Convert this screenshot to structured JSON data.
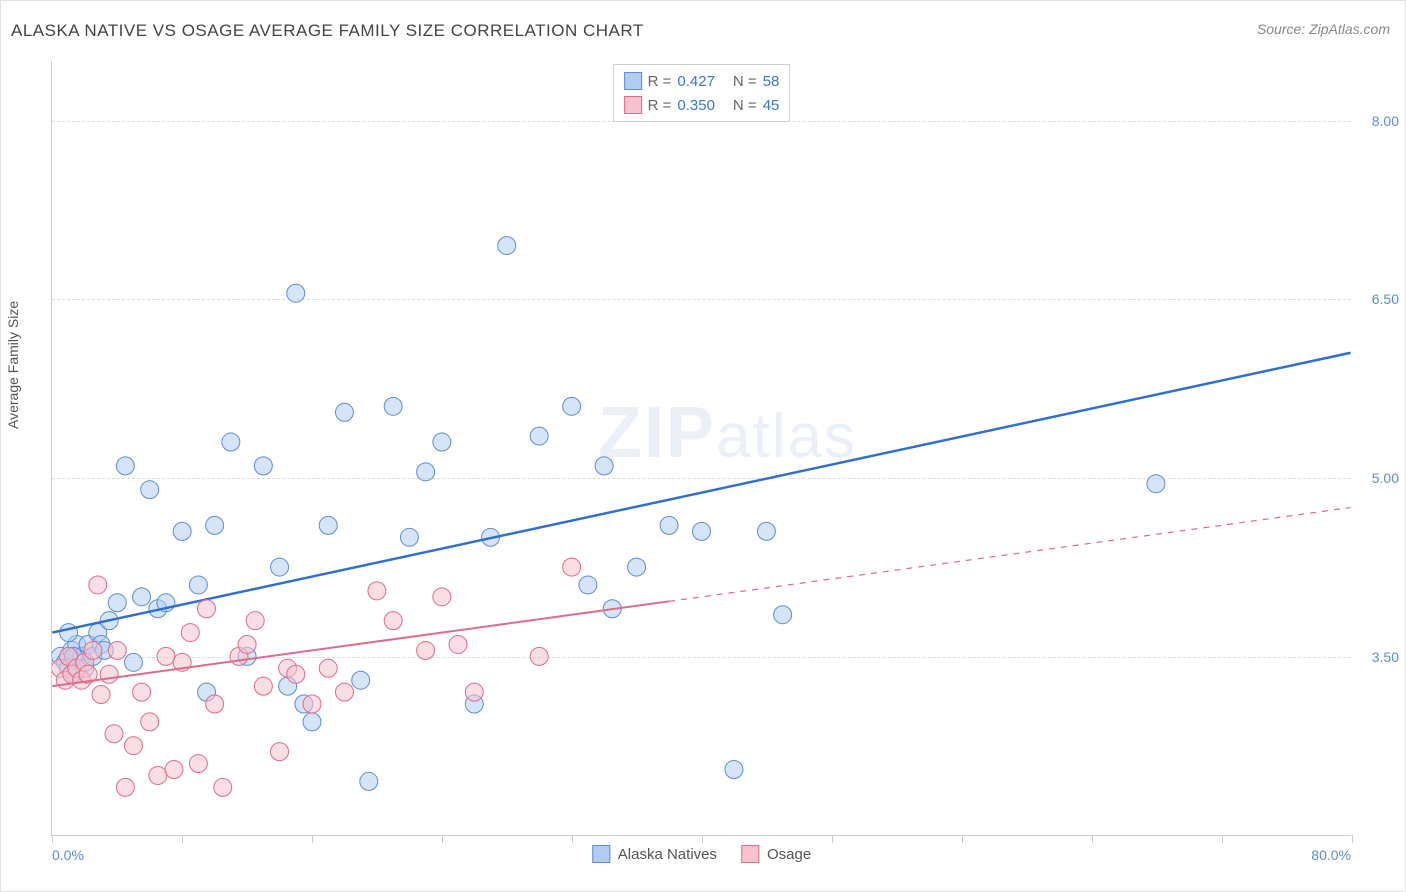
{
  "title": "ALASKA NATIVE VS OSAGE AVERAGE FAMILY SIZE CORRELATION CHART",
  "source": "Source: ZipAtlas.com",
  "ylabel": "Average Family Size",
  "watermark_a": "ZIP",
  "watermark_b": "atlas",
  "chart": {
    "type": "scatter",
    "xlim": [
      0,
      80
    ],
    "ylim": [
      2.0,
      8.5
    ],
    "xtick_positions": [
      0,
      8,
      16,
      24,
      32,
      40,
      48,
      56,
      64,
      72,
      80
    ],
    "xtick_labels": {
      "0": "0.0%",
      "80": "80.0%"
    },
    "ytick_positions": [
      3.5,
      5.0,
      6.5,
      8.0
    ],
    "ytick_labels": [
      "3.50",
      "5.00",
      "6.50",
      "8.00"
    ],
    "background_color": "#ffffff",
    "grid_color": "#dddddd",
    "axis_color": "#cccccc",
    "tick_label_color": "#5b8dd6",
    "marker_radius": 9,
    "marker_opacity": 0.55,
    "series": [
      {
        "name": "Alaska Natives",
        "fill": "#b3cdf0",
        "stroke": "#5b8dd6",
        "line_color": "#2e6fd0",
        "line_width": 2.5,
        "r_value": "0.427",
        "n_value": "58",
        "regression": {
          "x1": 0,
          "y1": 3.7,
          "x2": 80,
          "y2": 6.05
        },
        "regression_solid_until": 80,
        "points": [
          [
            0.5,
            3.5
          ],
          [
            0.8,
            3.45
          ],
          [
            1.0,
            3.4
          ],
          [
            1.2,
            3.55
          ],
          [
            1.4,
            3.35
          ],
          [
            1.5,
            3.6
          ],
          [
            1.8,
            3.5
          ],
          [
            2.0,
            3.4
          ],
          [
            2.2,
            3.6
          ],
          [
            2.5,
            3.5
          ],
          [
            2.8,
            3.7
          ],
          [
            3.0,
            3.6
          ],
          [
            3.2,
            3.55
          ],
          [
            3.5,
            3.8
          ],
          [
            4.0,
            3.95
          ],
          [
            4.5,
            5.1
          ],
          [
            5.0,
            3.45
          ],
          [
            5.5,
            4.0
          ],
          [
            6.0,
            4.9
          ],
          [
            6.5,
            3.9
          ],
          [
            7.0,
            3.95
          ],
          [
            8.0,
            4.55
          ],
          [
            9.0,
            4.1
          ],
          [
            9.5,
            3.2
          ],
          [
            10.0,
            4.6
          ],
          [
            11.0,
            5.3
          ],
          [
            12.0,
            3.5
          ],
          [
            13.0,
            5.1
          ],
          [
            14.0,
            4.25
          ],
          [
            14.5,
            3.25
          ],
          [
            15.0,
            6.55
          ],
          [
            15.5,
            3.1
          ],
          [
            16.0,
            2.95
          ],
          [
            17.0,
            4.6
          ],
          [
            18.0,
            5.55
          ],
          [
            19.0,
            3.3
          ],
          [
            19.5,
            2.45
          ],
          [
            21.0,
            5.6
          ],
          [
            22.0,
            4.5
          ],
          [
            23.0,
            5.05
          ],
          [
            24.0,
            5.3
          ],
          [
            26.0,
            3.1
          ],
          [
            27.0,
            4.5
          ],
          [
            28.0,
            6.95
          ],
          [
            30.0,
            5.35
          ],
          [
            32.0,
            5.6
          ],
          [
            33.0,
            4.1
          ],
          [
            34.5,
            3.9
          ],
          [
            34.0,
            5.1
          ],
          [
            36.0,
            4.25
          ],
          [
            38.0,
            4.6
          ],
          [
            40.0,
            4.55
          ],
          [
            42.0,
            2.55
          ],
          [
            44.0,
            4.55
          ],
          [
            45.0,
            3.85
          ],
          [
            68.0,
            4.95
          ],
          [
            1.0,
            3.7
          ],
          [
            1.3,
            3.5
          ]
        ]
      },
      {
        "name": "Osage",
        "fill": "#f4c3cf",
        "stroke": "#e06a8a",
        "line_color": "#e06a8a",
        "line_width": 2,
        "r_value": "0.350",
        "n_value": "45",
        "regression": {
          "x1": 0,
          "y1": 3.25,
          "x2": 80,
          "y2": 4.75
        },
        "regression_solid_until": 38,
        "points": [
          [
            0.5,
            3.4
          ],
          [
            0.8,
            3.3
          ],
          [
            1.0,
            3.5
          ],
          [
            1.2,
            3.35
          ],
          [
            1.5,
            3.4
          ],
          [
            1.8,
            3.3
          ],
          [
            2.0,
            3.45
          ],
          [
            2.2,
            3.35
          ],
          [
            2.5,
            3.55
          ],
          [
            2.8,
            4.1
          ],
          [
            3.0,
            3.18
          ],
          [
            3.5,
            3.35
          ],
          [
            3.8,
            2.85
          ],
          [
            4.0,
            3.55
          ],
          [
            4.5,
            2.4
          ],
          [
            5.0,
            2.75
          ],
          [
            5.5,
            3.2
          ],
          [
            6.0,
            2.95
          ],
          [
            6.5,
            2.5
          ],
          [
            7.0,
            3.5
          ],
          [
            7.5,
            2.55
          ],
          [
            8.0,
            3.45
          ],
          [
            8.5,
            3.7
          ],
          [
            9.0,
            2.6
          ],
          [
            9.5,
            3.9
          ],
          [
            10.0,
            3.1
          ],
          [
            10.5,
            2.4
          ],
          [
            11.5,
            3.5
          ],
          [
            12.0,
            3.6
          ],
          [
            12.5,
            3.8
          ],
          [
            13.0,
            3.25
          ],
          [
            14.0,
            2.7
          ],
          [
            14.5,
            3.4
          ],
          [
            15.0,
            3.35
          ],
          [
            16.0,
            3.1
          ],
          [
            17.0,
            3.4
          ],
          [
            18.0,
            3.2
          ],
          [
            20.0,
            4.05
          ],
          [
            21.0,
            3.8
          ],
          [
            23.0,
            3.55
          ],
          [
            24.0,
            4.0
          ],
          [
            25.0,
            3.6
          ],
          [
            26.0,
            3.2
          ],
          [
            30.0,
            3.5
          ],
          [
            32.0,
            4.25
          ]
        ]
      }
    ]
  },
  "legend_bottom": [
    {
      "label": "Alaska Natives",
      "fill": "#b3cdf0",
      "stroke": "#5b8dd6"
    },
    {
      "label": "Osage",
      "fill": "#f4c3cf",
      "stroke": "#e06a8a"
    }
  ]
}
